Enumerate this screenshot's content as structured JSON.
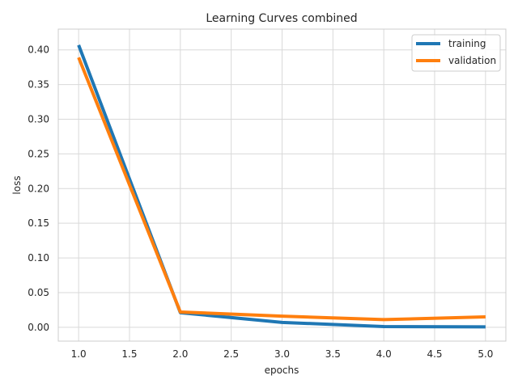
{
  "chart_data": {
    "type": "line",
    "title": "Learning Curves combined",
    "xlabel": "epochs",
    "ylabel": "loss",
    "xlim": [
      0.8,
      5.2
    ],
    "ylim": [
      -0.02,
      0.43
    ],
    "xticks": [
      1.0,
      1.5,
      2.0,
      2.5,
      3.0,
      3.5,
      4.0,
      4.5,
      5.0
    ],
    "xtick_labels": [
      "1.0",
      "1.5",
      "2.0",
      "2.5",
      "3.0",
      "3.5",
      "4.0",
      "4.5",
      "5.0"
    ],
    "yticks": [
      0.0,
      0.05,
      0.1,
      0.15,
      0.2,
      0.25,
      0.3,
      0.35,
      0.4
    ],
    "ytick_labels": [
      "0.00",
      "0.05",
      "0.10",
      "0.15",
      "0.20",
      "0.25",
      "0.30",
      "0.35",
      "0.40"
    ],
    "grid": true,
    "legend_position": "top-right",
    "x": [
      1,
      2,
      3,
      4,
      5
    ],
    "series": [
      {
        "name": "training",
        "color": "#1f77b4",
        "values": [
          0.407,
          0.021,
          0.007,
          0.001,
          0.0005
        ]
      },
      {
        "name": "validation",
        "color": "#ff7f0e",
        "values": [
          0.389,
          0.022,
          0.016,
          0.011,
          0.015
        ]
      }
    ]
  }
}
